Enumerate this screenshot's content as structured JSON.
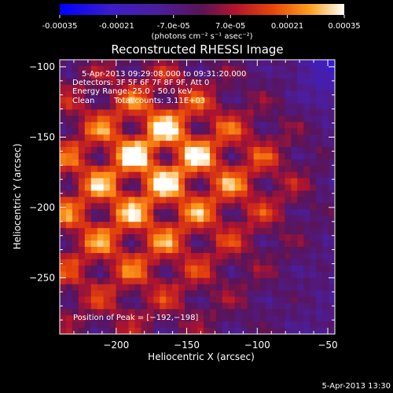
{
  "colorbar": {
    "tick_labels": [
      "-0.00035",
      "-0.00021",
      "-7.0e-05",
      "7.0e-05",
      "0.00021",
      "0.00035"
    ],
    "range": [
      -0.00035,
      0.00035
    ],
    "units_label": "(photons cm⁻² s⁻¹ asec⁻²)"
  },
  "chart_data": {
    "type": "heatmap",
    "title": "Reconstructed RHESSI Image",
    "xlabel": "Heliocentric X (arcsec)",
    "ylabel": "Heliocentric Y (arcsec)",
    "xlim": [
      -240,
      -45
    ],
    "ylim": [
      -290,
      -95
    ],
    "x_ticks": [
      -200,
      -150,
      -100,
      -50
    ],
    "y_ticks": [
      -100,
      -150,
      -200,
      -250
    ],
    "x_tick_labels": [
      "−200",
      "−150",
      "−100",
      "−50"
    ],
    "y_tick_labels": [
      "−100",
      "−150",
      "−200",
      "−250"
    ],
    "colormap": "rhessi-fire (blue → purple → red → orange → white)",
    "peak": [
      -192,
      -198
    ],
    "annotations": [
      "5-Apr-2013 09:29:08.000 to 09:31:20.000",
      "Detectors: 3F 5F 6F 7F 8F 9F, Att 0",
      "Energy Range: 25.0 - 50.0 keV",
      "Clean",
      "Total counts: 3.11E+03"
    ],
    "peak_label": "Position of Peak = [−192,−198]"
  },
  "timestamp": "5-Apr-2013 13:30"
}
